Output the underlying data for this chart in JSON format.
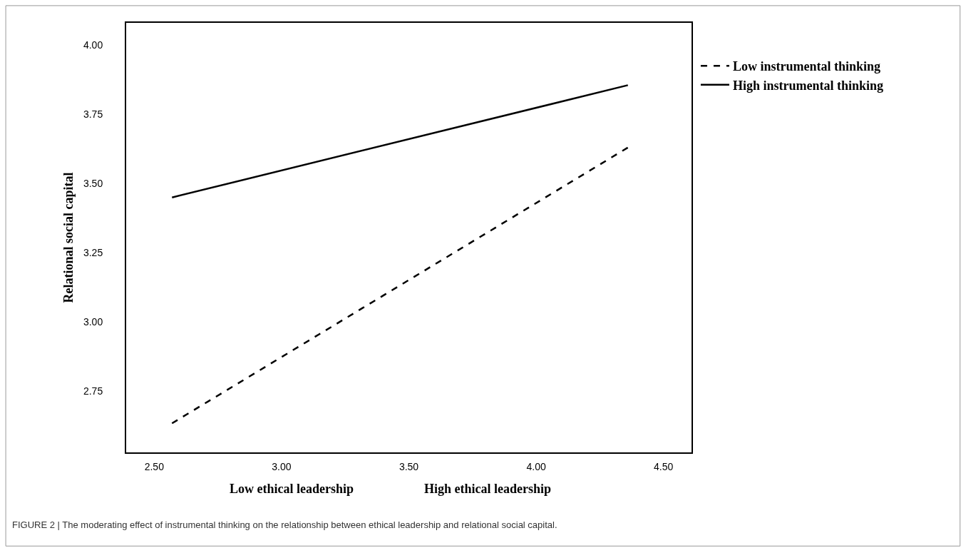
{
  "chart_data": {
    "type": "line",
    "ylabel": "Relational social capital",
    "x": [
      2.57,
      4.36
    ],
    "series": [
      {
        "name": "Low instrumental thinking",
        "color": "#000000",
        "line_style": "dashed",
        "values": [
          2.635,
          3.63
        ]
      },
      {
        "name": "High instrumental thinking",
        "color": "#000000",
        "line_style": "solid",
        "values": [
          3.45,
          3.855
        ]
      }
    ],
    "xlim": [
      2.39,
      4.61
    ],
    "xticks": [
      {
        "value": 2.5,
        "label": "2.50"
      },
      {
        "value": 3.0,
        "label": "3.00"
      },
      {
        "value": 3.5,
        "label": "3.50"
      },
      {
        "value": 4.0,
        "label": "4.00"
      },
      {
        "value": 4.5,
        "label": "4.50"
      }
    ],
    "ylim": [
      2.53,
      4.08
    ],
    "yticks": [
      {
        "value": 2.75,
        "label": "2.75"
      },
      {
        "value": 3.0,
        "label": "3.00"
      },
      {
        "value": 3.25,
        "label": "3.25"
      },
      {
        "value": 3.5,
        "label": "3.50"
      },
      {
        "value": 3.75,
        "label": "3.75"
      },
      {
        "value": 4.0,
        "label": "4.00"
      }
    ],
    "legend": "top right",
    "marker": "none",
    "annotations": [
      "Low ethical leadership",
      "High ethical leadership",
      "FIGURE 2 | The moderating effect of instrumental thinking on the relationship between ethical leadership and relational social capital."
    ]
  }
}
